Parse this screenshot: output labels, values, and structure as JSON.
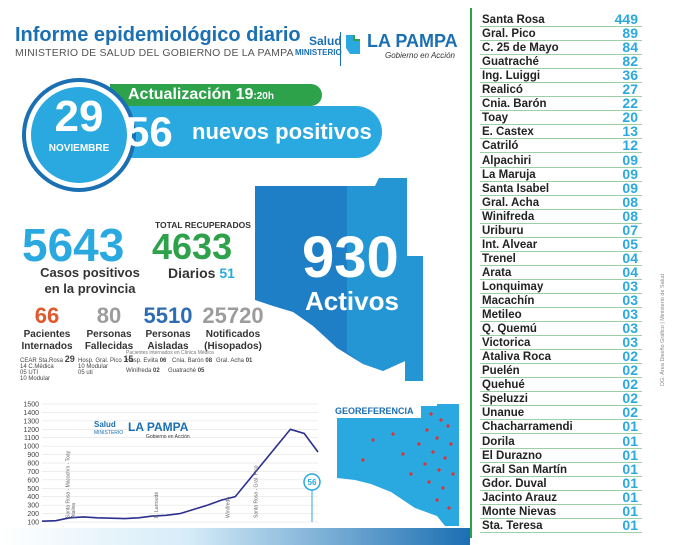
{
  "header": {
    "title": "Informe epidemiológico diario",
    "subtitle": "MINISTERIO DE SALUD DEL GOBIERNO DE LA PAMPA",
    "logo_salud": "Salud",
    "logo_ministerio": "MINISTERIO",
    "logo_lapampa": "LA PAMPA",
    "logo_gobierno": "Gobierno en Acción"
  },
  "update": {
    "label": "Actualización 19",
    "time_suffix": ":20h",
    "day": "29",
    "month": "NOVIEMBRE",
    "new_positives": "56",
    "new_positives_label": "nuevos positivos"
  },
  "activos": {
    "value": "930",
    "label": "Activos"
  },
  "casos": {
    "value": "5643",
    "label_line1": "Casos positivos",
    "label_line2": "en la provincia"
  },
  "recuperados": {
    "title": "TOTAL RECUPERADOS",
    "value": "4633",
    "diarios_label": "Diarios",
    "diarios_value": "51"
  },
  "stats": [
    {
      "value": "66",
      "line1": "Pacientes",
      "line2": "Internados",
      "color": "#e2572b"
    },
    {
      "value": "80",
      "line1": "Personas",
      "line2": "Fallecidas",
      "color": "#9c9c9c"
    },
    {
      "value": "5510",
      "line1": "Personas",
      "line2": "Aisladas",
      "color": "#2e6db5"
    },
    {
      "value": "25720",
      "line1": "Notificados",
      "line2": "(Hisopados)",
      "color": "#9c9c9c"
    }
  ],
  "internados": {
    "cear_label": "CEAR Sta.Rosa",
    "cear_value": "29",
    "cear_rows": [
      {
        "value": "14",
        "label": "C.Médica"
      },
      {
        "value": "05",
        "label": "UTI"
      },
      {
        "value": "10",
        "label": "Modular"
      }
    ],
    "pico_label": "Hosp. Gral. Pico",
    "pico_value": "15",
    "pico_rows": [
      {
        "value": "10",
        "label": "Modular"
      },
      {
        "value": "05",
        "label": "uti"
      }
    ],
    "clinica_title": "Pacientes internados en Clínica Médica",
    "clinica": [
      {
        "label": "Hosp. Eviita",
        "value": "06"
      },
      {
        "label": "Cnia. Barón",
        "value": "08"
      },
      {
        "label": "Gral. Acha",
        "value": "01"
      },
      {
        "label": "Winifreda",
        "value": "02"
      },
      {
        "label": "Guatraché",
        "value": "05"
      }
    ]
  },
  "chart_data": {
    "type": "line",
    "yticks": [
      "1500",
      "1400",
      "1300",
      "1200",
      "1100",
      "1000",
      "900",
      "800",
      "700",
      "600",
      "500",
      "400",
      "300",
      "200",
      "100"
    ],
    "ylim": [
      100,
      1500
    ],
    "x": [
      0,
      5,
      10,
      15,
      20,
      25,
      30,
      35,
      40,
      45,
      50,
      55,
      60,
      65,
      70,
      75,
      80,
      85,
      90,
      95,
      100
    ],
    "y": [
      110,
      115,
      150,
      160,
      150,
      145,
      140,
      150,
      170,
      180,
      200,
      250,
      300,
      360,
      400,
      600,
      800,
      1000,
      1200,
      1150,
      930
    ],
    "annotations": [
      "Santa Rosa - Macachín - Toay",
      "Ataliva",
      "B. Larroudé",
      "Winifreda",
      "Santa Rosa - Gral. Pico"
    ],
    "last_value_label": "56",
    "legend": "top-center"
  },
  "georeferencia": {
    "title": "GEOREFERENCIA"
  },
  "localidades": [
    {
      "name": "Santa Rosa",
      "value": "449"
    },
    {
      "name": "Gral. Pico",
      "value": "89"
    },
    {
      "name": "C. 25 de Mayo",
      "value": "84"
    },
    {
      "name": "Guatraché",
      "value": "82"
    },
    {
      "name": "Ing. Luiggi",
      "value": "36"
    },
    {
      "name": "Realicó",
      "value": "27"
    },
    {
      "name": "Cnia. Barón",
      "value": "22"
    },
    {
      "name": "Toay",
      "value": "20"
    },
    {
      "name": "E. Castex",
      "value": "13"
    },
    {
      "name": "Catriló",
      "value": "12"
    },
    {
      "name": "Alpachiri",
      "value": "09"
    },
    {
      "name": "La Maruja",
      "value": "09"
    },
    {
      "name": "Santa Isabel",
      "value": "09"
    },
    {
      "name": "Gral. Acha",
      "value": "08"
    },
    {
      "name": "Winifreda",
      "value": "08"
    },
    {
      "name": "Uriburu",
      "value": "07"
    },
    {
      "name": "Int. Alvear",
      "value": "05"
    },
    {
      "name": "Trenel",
      "value": "04"
    },
    {
      "name": "Arata",
      "value": "04"
    },
    {
      "name": "Lonquimay",
      "value": "03"
    },
    {
      "name": "Macachín",
      "value": "03"
    },
    {
      "name": "Metileo",
      "value": "03"
    },
    {
      "name": "Q. Quemú",
      "value": "03"
    },
    {
      "name": "Victorica",
      "value": "03"
    },
    {
      "name": "Ataliva Roca",
      "value": "02"
    },
    {
      "name": "Puelén",
      "value": "02"
    },
    {
      "name": "Quehué",
      "value": "02"
    },
    {
      "name": "Speluzzi",
      "value": "02"
    },
    {
      "name": "Unanue",
      "value": "02"
    },
    {
      "name": "Chacharramendi",
      "value": "01"
    },
    {
      "name": "Dorila",
      "value": "01"
    },
    {
      "name": "El Durazno",
      "value": "01"
    },
    {
      "name": "Gral San Martín",
      "value": "01"
    },
    {
      "name": "Gdor. Duval",
      "value": "01"
    },
    {
      "name": "Jacinto Arauz",
      "value": "01"
    },
    {
      "name": "Monte Nievas",
      "value": "01"
    },
    {
      "name": "Sta. Teresa",
      "value": "01"
    }
  ],
  "credit": "DG: Área Diseño Gráfico | Ministerio de Salud",
  "colors": {
    "blue": "#2aa9e0",
    "darkblue": "#1b6fb3",
    "green": "#2ea24a"
  }
}
